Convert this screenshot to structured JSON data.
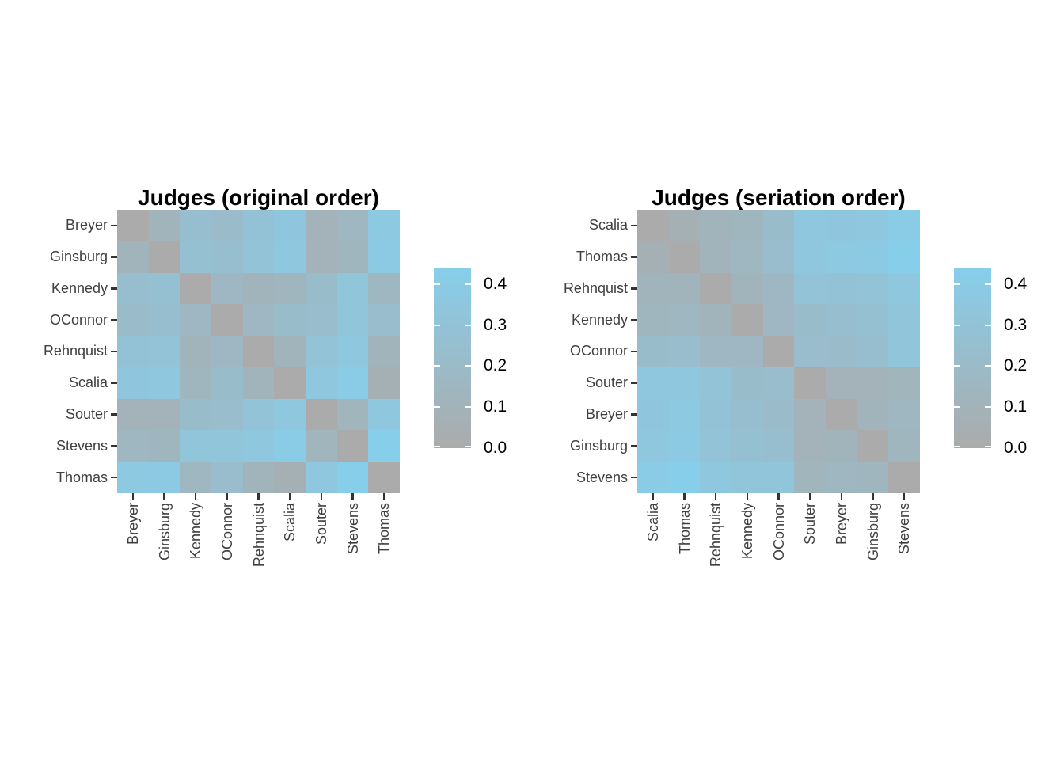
{
  "page": {
    "background": "#ffffff"
  },
  "colors": {
    "scale_low": "#ABABAB",
    "scale_high": "#87CEEB",
    "title_text": "#000000",
    "axis_text": "#404040",
    "tick_mark": "#333333",
    "legend_text": "#000000",
    "legend_tick_dash": "#ffffff"
  },
  "chart_data": [
    {
      "type": "heatmap",
      "title": "Judges (original order)",
      "row_labels": [
        "Breyer",
        "Ginsburg",
        "Kennedy",
        "OConnor",
        "Rehnquist",
        "Scalia",
        "Souter",
        "Stevens",
        "Thomas"
      ],
      "col_labels": [
        "Breyer",
        "Ginsburg",
        "Kennedy",
        "OConnor",
        "Rehnquist",
        "Scalia",
        "Souter",
        "Stevens",
        "Thomas"
      ],
      "matrix": [
        [
          0.0,
          0.11,
          0.25,
          0.21,
          0.3,
          0.35,
          0.1,
          0.15,
          0.38
        ],
        [
          0.11,
          0.0,
          0.27,
          0.25,
          0.31,
          0.36,
          0.1,
          0.14,
          0.39
        ],
        [
          0.25,
          0.27,
          0.0,
          0.16,
          0.12,
          0.14,
          0.22,
          0.33,
          0.15
        ],
        [
          0.21,
          0.25,
          0.16,
          0.0,
          0.16,
          0.22,
          0.23,
          0.33,
          0.23
        ],
        [
          0.3,
          0.31,
          0.12,
          0.16,
          0.0,
          0.12,
          0.31,
          0.36,
          0.12
        ],
        [
          0.35,
          0.36,
          0.14,
          0.22,
          0.12,
          0.0,
          0.36,
          0.41,
          0.07
        ],
        [
          0.1,
          0.1,
          0.22,
          0.23,
          0.31,
          0.36,
          0.0,
          0.13,
          0.36
        ],
        [
          0.15,
          0.14,
          0.33,
          0.33,
          0.36,
          0.41,
          0.13,
          0.0,
          0.45
        ],
        [
          0.38,
          0.39,
          0.15,
          0.23,
          0.12,
          0.07,
          0.36,
          0.45,
          0.0
        ]
      ],
      "vmax": 0.45,
      "legend": {
        "tick_labels": [
          "0.4",
          "0.3",
          "0.2",
          "0.1",
          "0.0"
        ],
        "tick_values": [
          0.4,
          0.3,
          0.2,
          0.1,
          0.0
        ],
        "domain": [
          0,
          0.44
        ]
      }
    },
    {
      "type": "heatmap",
      "title": "Judges (seriation order)",
      "row_labels": [
        "Scalia",
        "Thomas",
        "Rehnquist",
        "Kennedy",
        "OConnor",
        "Souter",
        "Breyer",
        "Ginsburg",
        "Stevens"
      ],
      "col_labels": [
        "Scalia",
        "Thomas",
        "Rehnquist",
        "Kennedy",
        "OConnor",
        "Souter",
        "Breyer",
        "Ginsburg",
        "Stevens"
      ],
      "matrix": [
        [
          0.0,
          0.07,
          0.12,
          0.14,
          0.22,
          0.36,
          0.35,
          0.36,
          0.41
        ],
        [
          0.07,
          0.0,
          0.12,
          0.15,
          0.23,
          0.36,
          0.38,
          0.39,
          0.45
        ],
        [
          0.12,
          0.12,
          0.0,
          0.12,
          0.16,
          0.31,
          0.3,
          0.31,
          0.36
        ],
        [
          0.14,
          0.15,
          0.12,
          0.0,
          0.16,
          0.22,
          0.25,
          0.27,
          0.33
        ],
        [
          0.22,
          0.23,
          0.16,
          0.16,
          0.0,
          0.23,
          0.21,
          0.25,
          0.33
        ],
        [
          0.36,
          0.36,
          0.31,
          0.22,
          0.23,
          0.0,
          0.1,
          0.1,
          0.13
        ],
        [
          0.35,
          0.38,
          0.3,
          0.25,
          0.21,
          0.1,
          0.0,
          0.11,
          0.15
        ],
        [
          0.36,
          0.39,
          0.31,
          0.27,
          0.25,
          0.1,
          0.11,
          0.0,
          0.14
        ],
        [
          0.41,
          0.45,
          0.36,
          0.33,
          0.33,
          0.13,
          0.15,
          0.14,
          0.0
        ]
      ],
      "vmax": 0.45,
      "legend": {
        "tick_labels": [
          "0.4",
          "0.3",
          "0.2",
          "0.1",
          "0.0"
        ],
        "tick_values": [
          0.4,
          0.3,
          0.2,
          0.1,
          0.0
        ],
        "domain": [
          0,
          0.44
        ]
      }
    }
  ]
}
